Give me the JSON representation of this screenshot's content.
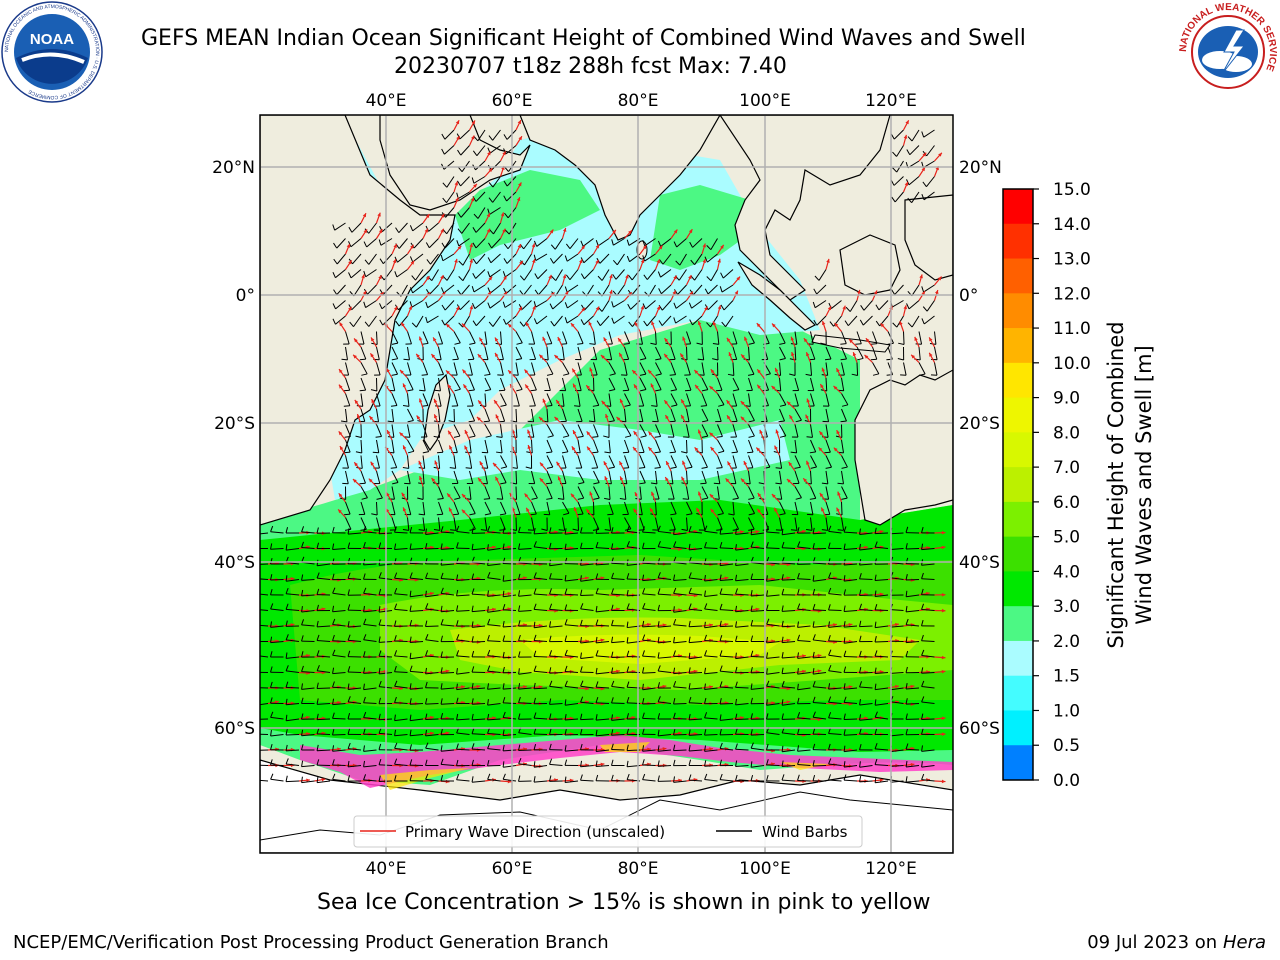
{
  "header": {
    "title_line1": "GEFS MEAN Indian Ocean Significant Height of Combined Wind Waves and Swell",
    "title_line2": "20230707 t18z 288h fcst   Max: 7.40"
  },
  "logos": {
    "left": "NOAA",
    "left_ring": "NATIONAL OCEANIC AND ATMOSPHERIC ADMINISTRATION · U.S. DEPARTMENT OF COMMERCE",
    "right_ring": "NATIONAL WEATHER SERVICE"
  },
  "map": {
    "lon_ticks_top": [
      "40°E",
      "60°E",
      "80°E",
      "100°E",
      "120°E"
    ],
    "lon_ticks_bottom": [
      "40°E",
      "60°E",
      "80°E",
      "100°E",
      "120°E"
    ],
    "lat_ticks_left": [
      "20°N",
      "0°",
      "20°S",
      "40°S",
      "60°S"
    ],
    "lat_ticks_right": [
      "20°N",
      "0°",
      "20°S",
      "40°S",
      "60°S"
    ],
    "colors": {
      "land": "#efedde",
      "ocean_low": "#aafcff",
      "ocean_mid": "#4cf884",
      "ocean_high": "#d6ff00",
      "ice": "#ff3fc8",
      "arrow": "#e8231a",
      "barb": "#000000"
    }
  },
  "legend": {
    "wave_label": "Primary Wave Direction (unscaled)",
    "barb_label": "Wind Barbs"
  },
  "colorbar": {
    "label_line1": "Significant Height of Combined",
    "label_line2": "Wind Waves and Swell [m]",
    "ticks": [
      "15.0",
      "14.0",
      "13.0",
      "12.0",
      "11.0",
      "10.0",
      "9.0",
      "8.0",
      "7.0",
      "6.0",
      "5.0",
      "4.0",
      "3.0",
      "2.0",
      "1.5",
      "1.0",
      "0.5",
      "0.0"
    ],
    "colors": [
      "#ff0000",
      "#ff3000",
      "#ff6000",
      "#ff8c00",
      "#ffb400",
      "#ffe600",
      "#eef600",
      "#d8f800",
      "#bcf000",
      "#7cf000",
      "#3ce000",
      "#00e800",
      "#4cf884",
      "#aafcff",
      "#44fcff",
      "#00f0ff",
      "#0080ff",
      "#0000ff"
    ]
  },
  "caption": "Sea Ice Concentration > 15% is shown in pink to yellow",
  "footer": {
    "left": "NCEP/EMC/Verification Post Processing Product Generation Branch",
    "right_date": "09 Jul 2023 on ",
    "right_host": "Hera"
  }
}
